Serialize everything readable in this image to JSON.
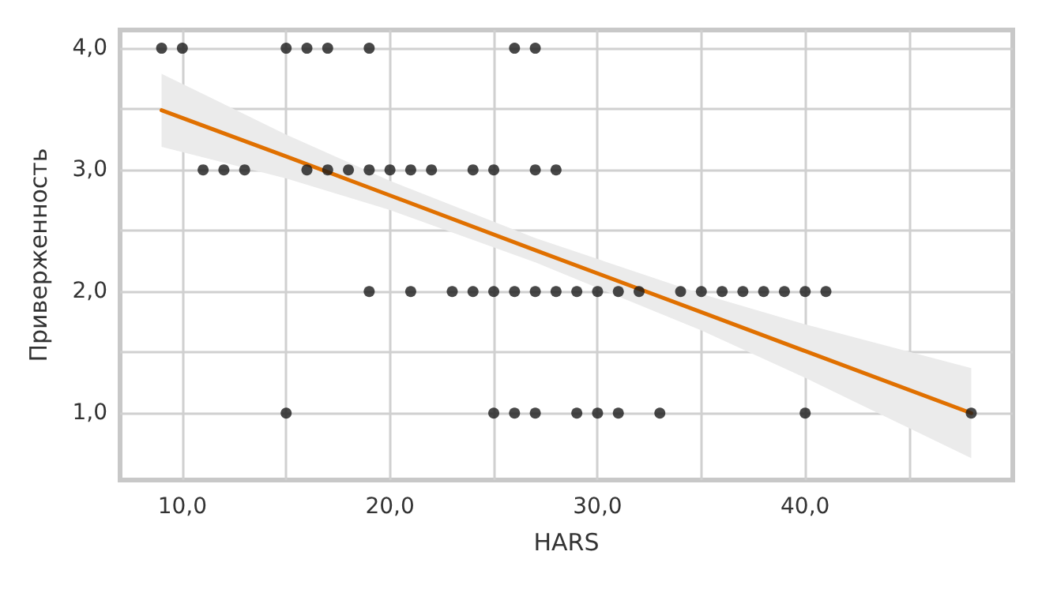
{
  "chart_data": {
    "type": "scatter",
    "xlabel": "HARS",
    "ylabel": "Приверженность",
    "xlim": [
      7,
      50
    ],
    "xticks": [
      {
        "value": 10,
        "label": "10,0"
      },
      {
        "value": 15,
        "label": null
      },
      {
        "value": 20,
        "label": "20,0"
      },
      {
        "value": 25,
        "label": null
      },
      {
        "value": 30,
        "label": "30,0"
      },
      {
        "value": 35,
        "label": null
      },
      {
        "value": 40,
        "label": "40,0"
      },
      {
        "value": 45,
        "label": null
      }
    ],
    "ylim": [
      0.45,
      4.15
    ],
    "yticks": [
      {
        "value": 1,
        "label": "1,0"
      },
      {
        "value": 1.5,
        "label": null
      },
      {
        "value": 2,
        "label": "2,0"
      },
      {
        "value": 2.5,
        "label": null
      },
      {
        "value": 3,
        "label": "3,0"
      },
      {
        "value": 3.5,
        "label": null
      },
      {
        "value": 4,
        "label": "4,0"
      }
    ],
    "grid": true,
    "series": [
      {
        "marker": "circle",
        "color": "#1a1a1a",
        "x": [
          9,
          10,
          15,
          16,
          17,
          19,
          26,
          27,
          11,
          12,
          13,
          16,
          17,
          18,
          19,
          20,
          21,
          22,
          24,
          25,
          27,
          28,
          19,
          21,
          23,
          24,
          25,
          26,
          27,
          28,
          29,
          30,
          31,
          32,
          34,
          35,
          36,
          37,
          38,
          39,
          40,
          41,
          15,
          25,
          26,
          27,
          29,
          30,
          31,
          33,
          40,
          48
        ],
        "values": [
          4,
          4,
          4,
          4,
          4,
          4,
          4,
          4,
          3,
          3,
          3,
          3,
          3,
          3,
          3,
          3,
          3,
          3,
          3,
          3,
          3,
          3,
          2,
          2,
          2,
          2,
          2,
          2,
          2,
          2,
          2,
          2,
          2,
          2,
          2,
          2,
          2,
          2,
          2,
          2,
          2,
          2,
          1,
          1,
          1,
          1,
          1,
          1,
          1,
          1,
          1,
          1
        ]
      },
      {
        "type": "line",
        "marker": "none",
        "line_style": "solid",
        "color": "#e07000",
        "x": [
          9,
          15,
          20,
          27,
          35,
          40,
          48
        ],
        "values": [
          3.49,
          3.11,
          2.79,
          2.34,
          1.83,
          1.51,
          1.0
        ],
        "lower": [
          3.19,
          2.93,
          2.67,
          2.24,
          1.68,
          1.29,
          0.63
        ],
        "upper": [
          3.79,
          3.29,
          2.91,
          2.44,
          1.98,
          1.73,
          1.37
        ]
      }
    ]
  }
}
